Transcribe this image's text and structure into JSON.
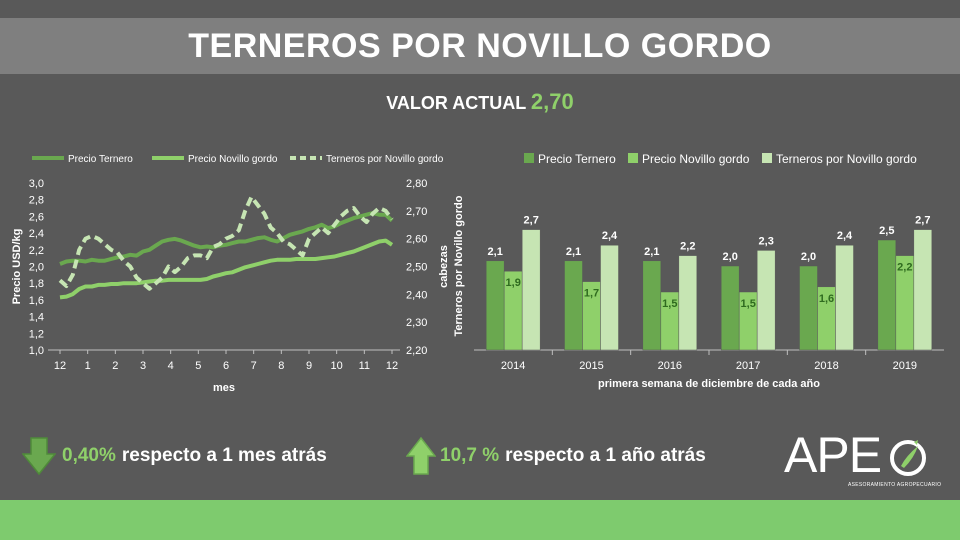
{
  "header": {
    "title": "TERNEROS POR NOVILLO GORDO"
  },
  "value": {
    "label": "VALOR ACTUAL",
    "amount": "2,70"
  },
  "stats": {
    "month": {
      "value": "0,40%",
      "text": "respecto a 1 mes atrás"
    },
    "year": {
      "value": "10,7 %",
      "text": "respecto a 1 año atrás"
    }
  },
  "logo": {
    "text": "APE",
    "subtitle": "ASESORAMIENTO AGROPECUARIO"
  },
  "colors": {
    "dark_green": "#6aa84f",
    "mid_green": "#8fd06a",
    "light_green": "#c6e5b3",
    "up_arrow": "#8fd06a",
    "down_arrow": "#6aa84f"
  },
  "chart_data": [
    {
      "type": "line",
      "legend": [
        "Precio Ternero",
        "Precio Novillo gordo",
        "Terneros por Novillo gordo"
      ],
      "legend_position": "top",
      "xlabel": "mes",
      "ylabel": "Precio USD/kg",
      "y2label": "cabezas",
      "ylim": [
        1.0,
        3.0
      ],
      "y2lim": [
        2.2,
        2.8
      ],
      "yticks": [
        "1,0",
        "1,2",
        "1,4",
        "1,6",
        "1,8",
        "2,0",
        "2,2",
        "2,4",
        "2,6",
        "2,8",
        "3,0"
      ],
      "y2ticks": [
        "2,20",
        "2,30",
        "2,40",
        "2,50",
        "2,60",
        "2,70",
        "2,80"
      ],
      "xticks": [
        "12",
        "1",
        "2",
        "3",
        "4",
        "5",
        "6",
        "7",
        "8",
        "9",
        "10",
        "11",
        "12"
      ],
      "series": [
        {
          "name": "Precio Ternero",
          "axis": "left",
          "values": [
            2.03,
            2.06,
            2.07,
            2.07,
            2.06,
            2.08,
            2.07,
            2.07,
            2.09,
            2.11,
            2.12,
            2.14,
            2.13,
            2.18,
            2.2,
            2.25,
            2.3,
            2.32,
            2.33,
            2.31,
            2.28,
            2.25,
            2.23,
            2.24,
            2.23,
            2.25,
            2.26,
            2.28,
            2.3,
            2.3,
            2.32,
            2.34,
            2.35,
            2.32,
            2.3,
            2.34,
            2.38,
            2.4,
            2.42,
            2.45,
            2.47,
            2.5,
            2.46,
            2.48,
            2.52,
            2.55,
            2.58,
            2.6,
            2.62,
            2.64,
            2.62,
            2.62,
            2.55
          ]
        },
        {
          "name": "Precio Novillo gordo",
          "axis": "left",
          "values": [
            1.63,
            1.64,
            1.67,
            1.73,
            1.76,
            1.76,
            1.78,
            1.78,
            1.79,
            1.79,
            1.8,
            1.8,
            1.8,
            1.81,
            1.82,
            1.83,
            1.83,
            1.84,
            1.84,
            1.84,
            1.84,
            1.84,
            1.84,
            1.85,
            1.88,
            1.9,
            1.92,
            1.93,
            1.96,
            1.99,
            2.01,
            2.03,
            2.05,
            2.07,
            2.08,
            2.08,
            2.08,
            2.09,
            2.09,
            2.09,
            2.09,
            2.1,
            2.11,
            2.12,
            2.14,
            2.16,
            2.18,
            2.21,
            2.24,
            2.27,
            2.3,
            2.31,
            2.26
          ]
        },
        {
          "name": "Terneros por Novillo gordo",
          "axis": "right",
          "values": [
            2.45,
            2.43,
            2.47,
            2.56,
            2.6,
            2.61,
            2.6,
            2.58,
            2.56,
            2.55,
            2.52,
            2.5,
            2.46,
            2.44,
            2.42,
            2.44,
            2.46,
            2.5,
            2.48,
            2.5,
            2.53,
            2.54,
            2.54,
            2.53,
            2.57,
            2.58,
            2.6,
            2.61,
            2.63,
            2.7,
            2.75,
            2.72,
            2.69,
            2.64,
            2.62,
            2.59,
            2.58,
            2.56,
            2.54,
            2.6,
            2.62,
            2.64,
            2.62,
            2.65,
            2.68,
            2.7,
            2.71,
            2.68,
            2.66,
            2.69,
            2.71,
            2.7,
            2.67
          ]
        }
      ]
    },
    {
      "type": "bar",
      "legend": [
        "Precio Ternero",
        "Precio Novillo gordo",
        "Terneros por Novillo gordo"
      ],
      "legend_position": "top",
      "xlabel": "primera semana de diciembre de cada año",
      "ylabel": "Terneros por Novillo gordo",
      "categories": [
        "2014",
        "2015",
        "2016",
        "2017",
        "2018",
        "2019"
      ],
      "series": [
        {
          "name": "Precio Ternero",
          "values": [
            2.1,
            2.1,
            2.1,
            2.0,
            2.0,
            2.5
          ],
          "labels": [
            "2,1",
            "2,1",
            "2,1",
            "2,0",
            "2,0",
            "2,5"
          ]
        },
        {
          "name": "Precio Novillo gordo",
          "values": [
            1.9,
            1.7,
            1.5,
            1.5,
            1.6,
            2.2
          ],
          "labels": [
            "1,9",
            "1,7",
            "1,5",
            "1,5",
            "1,6",
            "2,2"
          ]
        },
        {
          "name": "Terneros por Novillo gordo",
          "values": [
            2.7,
            2.4,
            2.2,
            2.3,
            2.4,
            2.7
          ],
          "labels": [
            "2,7",
            "2,4",
            "2,2",
            "2,3",
            "2,4",
            "2,7"
          ]
        }
      ]
    }
  ]
}
